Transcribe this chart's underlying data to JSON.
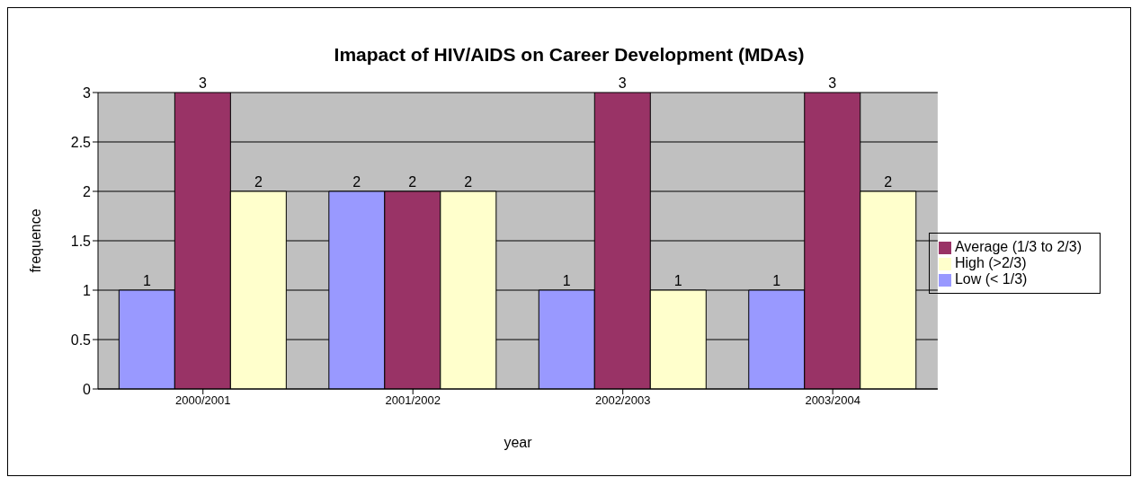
{
  "chart_data": {
    "type": "bar",
    "title": "Imapact of HIV/AIDS on Career Development (MDAs)",
    "xlabel": "year",
    "ylabel": "frequence",
    "categories": [
      "2000/2001",
      "2001/2002",
      "2002/2003",
      "2003/2004"
    ],
    "series": [
      {
        "name": "Low (< 1/3)",
        "color": "#9999ff",
        "values": [
          1,
          2,
          1,
          1
        ]
      },
      {
        "name": "Average (1/3 to 2/3)",
        "color": "#993366",
        "values": [
          3,
          2,
          3,
          3
        ]
      },
      {
        "name": "High (>2/3)",
        "color": "#ffffcc",
        "values": [
          2,
          2,
          1,
          2
        ]
      }
    ],
    "ylim": [
      0,
      3
    ],
    "yticks": [
      0,
      0.5,
      1,
      1.5,
      2,
      2.5,
      3
    ],
    "grid": "y",
    "legend": "right",
    "data_labels": true
  }
}
